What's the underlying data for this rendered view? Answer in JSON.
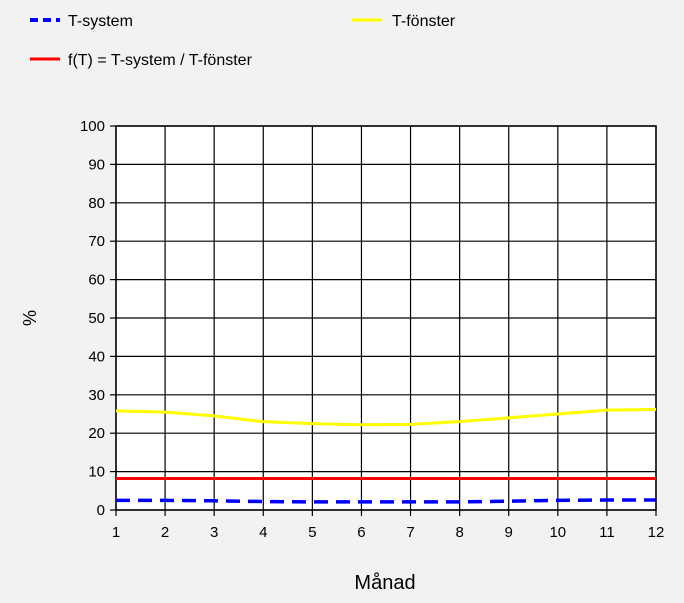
{
  "chart_data": {
    "type": "line",
    "title": "",
    "xlabel": "Månad",
    "ylabel": "%",
    "xlim": [
      1,
      12
    ],
    "ylim": [
      0,
      100
    ],
    "grid": true,
    "legend_position": "top",
    "x": [
      1,
      2,
      3,
      4,
      5,
      6,
      7,
      8,
      9,
      10,
      11,
      12
    ],
    "x_ticks": [
      "1",
      "2",
      "3",
      "4",
      "5",
      "6",
      "7",
      "8",
      "9",
      "10",
      "11",
      "12"
    ],
    "y_ticks": [
      "0",
      "10",
      "20",
      "30",
      "40",
      "50",
      "60",
      "70",
      "80",
      "90",
      "100"
    ],
    "series": [
      {
        "name": "T-system",
        "color": "#0000ff",
        "style": "dashed",
        "values": [
          2.5,
          2.5,
          2.4,
          2.2,
          2.1,
          2.1,
          2.1,
          2.1,
          2.3,
          2.5,
          2.6,
          2.6
        ]
      },
      {
        "name": "T-fönster",
        "color": "#ffff00",
        "style": "solid",
        "values": [
          25.8,
          25.5,
          24.5,
          23.0,
          22.5,
          22.2,
          22.3,
          23.0,
          24.0,
          25.0,
          26.0,
          26.2
        ]
      },
      {
        "name": "f(T) = T-system / T-fönster",
        "color": "#ff0000",
        "style": "solid",
        "values": [
          8.2,
          8.2,
          8.2,
          8.2,
          8.2,
          8.2,
          8.2,
          8.2,
          8.2,
          8.2,
          8.2,
          8.2
        ]
      }
    ]
  }
}
